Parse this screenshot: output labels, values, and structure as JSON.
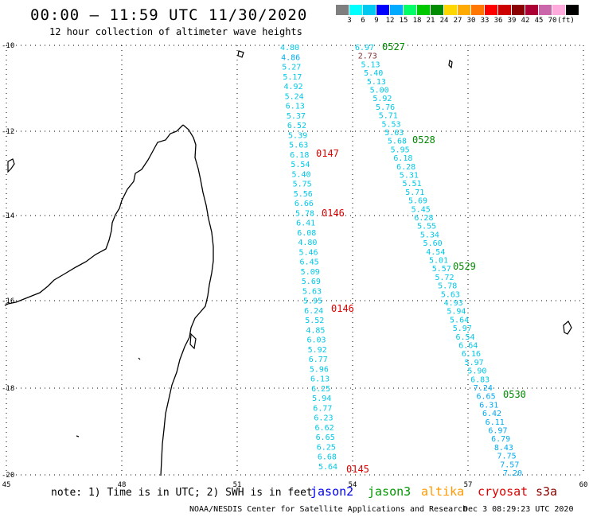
{
  "title": "00:00 – 11:59 UTC 11/30/2020",
  "subtitle": "12 hour collection of altimeter wave heights",
  "colorbar": {
    "colors": [
      "#7f7f7f",
      "#00ffff",
      "#00c8f0",
      "#0000ff",
      "#00aaff",
      "#00ff66",
      "#00c800",
      "#008c00",
      "#ffd700",
      "#ffaa00",
      "#ff7700",
      "#ff0000",
      "#cc0000",
      "#8b0000",
      "#aa0033",
      "#cc66aa",
      "#ffaadd",
      "#000000"
    ],
    "labels": [
      "3",
      "6",
      "9",
      "12",
      "15",
      "18",
      "21",
      "24",
      "27",
      "30",
      "33",
      "36",
      "39",
      "42",
      "45",
      "70",
      "(ft)"
    ]
  },
  "axes": {
    "lat_labels": [
      "-10",
      "-12",
      "-14",
      "-16",
      "-18",
      "-20"
    ],
    "lon_labels": [
      "45",
      "48",
      "51",
      "54",
      "57",
      "60"
    ]
  },
  "footnote": "note:  1) Time is in UTC;  2) SWH is in feet",
  "satellites": [
    {
      "name": "jason2",
      "color": "#0000ee"
    },
    {
      "name": "jason3",
      "color": "#009900"
    },
    {
      "name": "altika",
      "color": "#ff9900"
    },
    {
      "name": "cryosat",
      "color": "#dd0000"
    },
    {
      "name": "s3a",
      "color": "#8b0000"
    }
  ],
  "credit": "NOAA/NESDIS Center for Satellite Applications and Research",
  "credit_time": "Dec  3 08:29:23 UTC 2020",
  "track_labels": [
    {
      "text": "0527",
      "color": "#008800"
    },
    {
      "text": "0528",
      "color": "#008800"
    },
    {
      "text": "0529",
      "color": "#008800"
    },
    {
      "text": "0530",
      "color": "#008800"
    },
    {
      "text": "0147",
      "color": "#dd0000"
    },
    {
      "text": "0146",
      "color": "#dd0000"
    },
    {
      "text": "0146",
      "color": "#dd0000"
    },
    {
      "text": "0145",
      "color": "#dd0000"
    }
  ],
  "track_a_values": [
    "4.80",
    "4.86",
    "5.27",
    "5.17",
    "4.92",
    "5.24",
    "6.13",
    "5.37",
    "6.52",
    "5.39",
    "5.63",
    "6.18",
    "5.54",
    "5.40",
    "5.75",
    "5.56",
    "6.66",
    "5.78",
    "6.41",
    "6.08",
    "4.80",
    "5.46",
    "6.45",
    "5.09",
    "5.69",
    "5.63",
    "5.95",
    "6.24",
    "5.52",
    "4.85",
    "6.03",
    "5.92",
    "6.77",
    "5.96",
    "6.13",
    "6.25",
    "5.94",
    "6.77",
    "6.23",
    "6.62",
    "6.65",
    "6.25",
    "6.68",
    "5.64"
  ],
  "track_b_values": [
    "6.97",
    "2.73",
    "5.13",
    "5.40",
    "5.13",
    "5.00",
    "5.92",
    "5.76",
    "5.71",
    "5.53",
    "5.63",
    "5.68",
    "5.95",
    "6.18",
    "6.28",
    "5.31",
    "5.51",
    "5.71",
    "5.69",
    "5.45",
    "6.28",
    "5.55",
    "5.34",
    "5.60",
    "4.54",
    "5.01",
    "5.57",
    "5.72",
    "5.78",
    "5.63",
    "4.93",
    "5.94",
    "5.64",
    "5.97",
    "6.54",
    "6.64",
    "6.16",
    "5.97",
    "5.90",
    "6.83",
    "7.24",
    "6.65",
    "6.31",
    "6.42",
    "6.11",
    "6.97",
    "6.79",
    "8.43",
    "7.75",
    "7.57",
    "7.20"
  ]
}
